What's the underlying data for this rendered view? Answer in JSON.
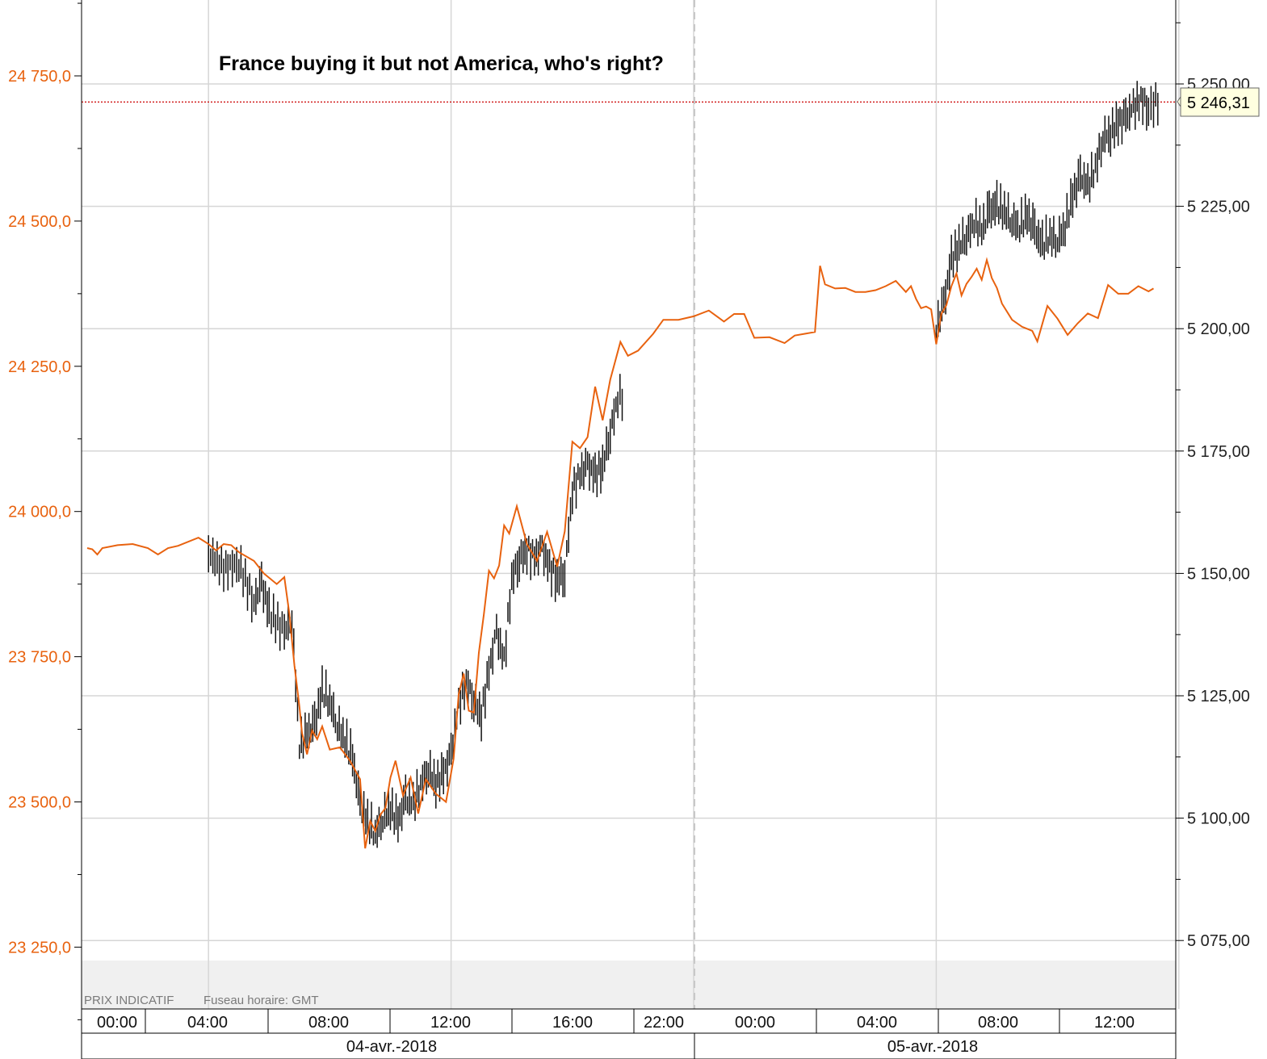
{
  "chart_data": {
    "type": "line",
    "title": "France buying it but not America, who's right?",
    "footnote": {
      "label": "PRIX INDICATIF",
      "timezone": "Fuseau horaire: GMT"
    },
    "x_ticks": [
      "00:00",
      "04:00",
      "08:00",
      "12:00",
      "16:00",
      "22:00",
      "00:00",
      "04:00",
      "08:00",
      "12:00"
    ],
    "x_dates": [
      "04-avr.-2018",
      "05-avr.-2018"
    ],
    "left_axis": {
      "ticks": [
        "24 750,0",
        "24 500,0",
        "24 250,0",
        "24 000,0",
        "23 750,0",
        "23 500,0",
        "23 250,0"
      ],
      "tick_values": [
        24750,
        24500,
        24250,
        24000,
        23750,
        23500,
        23250
      ],
      "color": "#e8620f"
    },
    "right_axis": {
      "ticks": [
        "5 250,00",
        "5 225,00",
        "5 200,00",
        "5 175,00",
        "5 150,00",
        "5 125,00",
        "5 100,00",
        "5 075,00"
      ],
      "tick_values": [
        5250,
        5225,
        5200,
        5175,
        5150,
        5125,
        5100,
        5075
      ],
      "color": "#222222"
    },
    "last_price": {
      "label": "5 246,31",
      "value": 5246.31,
      "line_color": "#cc0000"
    },
    "grid": true,
    "series": [
      {
        "axis": "left",
        "style": "line",
        "color": "#e8620f",
        "points": [
          [
            "04-avr. 00:00",
            23937
          ],
          [
            "04-avr. 00:10",
            23935
          ],
          [
            "04-avr. 00:20",
            23926
          ],
          [
            "04-avr. 00:30",
            23937
          ],
          [
            "04-avr. 01:00",
            23942
          ],
          [
            "04-avr. 01:30",
            23944
          ],
          [
            "04-avr. 02:00",
            23937
          ],
          [
            "04-avr. 02:20",
            23926
          ],
          [
            "04-avr. 02:40",
            23937
          ],
          [
            "04-avr. 03:00",
            23941
          ],
          [
            "04-avr. 03:40",
            23955
          ],
          [
            "04-avr. 04:00",
            23944
          ],
          [
            "04-avr. 04:15",
            23933
          ],
          [
            "04-avr. 04:30",
            23944
          ],
          [
            "04-avr. 04:45",
            23942
          ],
          [
            "04-avr. 05:00",
            23930
          ],
          [
            "04-avr. 05:30",
            23915
          ],
          [
            "04-avr. 05:50",
            23893
          ],
          [
            "04-avr. 06:15",
            23875
          ],
          [
            "04-avr. 06:30",
            23887
          ],
          [
            "04-avr. 06:40",
            23824
          ],
          [
            "04-avr. 06:50",
            23735
          ],
          [
            "04-avr. 07:00",
            23664
          ],
          [
            "04-avr. 07:05",
            23619
          ],
          [
            "04-avr. 07:15",
            23582
          ],
          [
            "04-avr. 07:25",
            23623
          ],
          [
            "04-avr. 07:35",
            23608
          ],
          [
            "04-avr. 07:45",
            23630
          ],
          [
            "04-avr. 08:00",
            23590
          ],
          [
            "04-avr. 08:20",
            23594
          ],
          [
            "04-avr. 08:40",
            23571
          ],
          [
            "04-avr. 09:00",
            23539
          ],
          [
            "04-avr. 09:10",
            23420
          ],
          [
            "04-avr. 09:20",
            23467
          ],
          [
            "04-avr. 09:30",
            23450
          ],
          [
            "04-avr. 09:40",
            23478
          ],
          [
            "04-avr. 09:50",
            23489
          ],
          [
            "04-avr. 10:00",
            23542
          ],
          [
            "04-avr. 10:10",
            23571
          ],
          [
            "04-avr. 10:25",
            23511
          ],
          [
            "04-avr. 10:40",
            23542
          ],
          [
            "04-avr. 10:55",
            23480
          ],
          [
            "04-avr. 11:10",
            23539
          ],
          [
            "04-avr. 11:30",
            23514
          ],
          [
            "04-avr. 11:50",
            23500
          ],
          [
            "04-avr. 12:05",
            23574
          ],
          [
            "04-avr. 12:15",
            23685
          ],
          [
            "04-avr. 12:25",
            23721
          ],
          [
            "04-avr. 12:35",
            23657
          ],
          [
            "04-avr. 12:45",
            23654
          ],
          [
            "04-avr. 12:55",
            23757
          ],
          [
            "04-avr. 13:05",
            23824
          ],
          [
            "04-avr. 13:15",
            23898
          ],
          [
            "04-avr. 13:25",
            23885
          ],
          [
            "04-avr. 13:35",
            23907
          ],
          [
            "04-avr. 13:45",
            23976
          ],
          [
            "04-avr. 13:55",
            23962
          ],
          [
            "04-avr. 14:10",
            24009
          ],
          [
            "04-avr. 14:30",
            23944
          ],
          [
            "04-avr. 14:50",
            23915
          ],
          [
            "04-avr. 15:10",
            23965
          ],
          [
            "04-avr. 15:30",
            23905
          ],
          [
            "04-avr. 15:45",
            23966
          ],
          [
            "04-avr. 16:00",
            24120
          ],
          [
            "04-avr. 16:15",
            24109
          ],
          [
            "04-avr. 16:30",
            24128
          ],
          [
            "04-avr. 16:45",
            24215
          ],
          [
            "04-avr. 17:00",
            24157
          ],
          [
            "04-avr. 17:15",
            24227
          ],
          [
            "04-avr. 17:35",
            24292
          ],
          [
            "04-avr. 17:50",
            24268
          ],
          [
            "04-avr. 18:10",
            24277
          ],
          [
            "04-avr. 18:40",
            24306
          ],
          [
            "04-avr. 19:00",
            24330
          ],
          [
            "04-avr. 19:30",
            24330
          ],
          [
            "04-avr. 20:00",
            24336
          ],
          [
            "04-avr. 20:30",
            24346
          ],
          [
            "04-avr. 21:00",
            24327
          ],
          [
            "04-avr. 21:20",
            24340
          ],
          [
            "04-avr. 21:40",
            24340
          ],
          [
            "04-avr. 22:00",
            24299
          ],
          [
            "04-avr. 22:30",
            24300
          ],
          [
            "04-avr. 23:00",
            24290
          ],
          [
            "04-avr. 23:20",
            24303
          ],
          [
            "04-avr. 23:40",
            24306
          ],
          [
            "05-avr. 00:00",
            24309
          ],
          [
            "05-avr. 00:10",
            24423
          ],
          [
            "05-avr. 00:20",
            24391
          ],
          [
            "05-avr. 00:40",
            24384
          ],
          [
            "05-avr. 01:00",
            24385
          ],
          [
            "05-avr. 01:20",
            24378
          ],
          [
            "05-avr. 01:40",
            24378
          ],
          [
            "05-avr. 02:00",
            24381
          ],
          [
            "05-avr. 02:20",
            24388
          ],
          [
            "05-avr. 02:40",
            24397
          ],
          [
            "05-avr. 03:00",
            24378
          ],
          [
            "05-avr. 03:10",
            24388
          ],
          [
            "05-avr. 03:20",
            24366
          ],
          [
            "05-avr. 03:30",
            24350
          ],
          [
            "05-avr. 03:40",
            24353
          ],
          [
            "05-avr. 03:50",
            24348
          ],
          [
            "05-avr. 04:00",
            24288
          ],
          [
            "05-avr. 04:10",
            24340
          ],
          [
            "05-avr. 04:20",
            24355
          ],
          [
            "05-avr. 04:30",
            24388
          ],
          [
            "05-avr. 04:40",
            24410
          ],
          [
            "05-avr. 04:50",
            24372
          ],
          [
            "05-avr. 05:00",
            24392
          ],
          [
            "05-avr. 05:10",
            24404
          ],
          [
            "05-avr. 05:20",
            24418
          ],
          [
            "05-avr. 05:30",
            24399
          ],
          [
            "05-avr. 05:40",
            24433
          ],
          [
            "05-avr. 05:50",
            24402
          ],
          [
            "05-avr. 06:00",
            24385
          ],
          [
            "05-avr. 06:10",
            24358
          ],
          [
            "05-avr. 06:30",
            24330
          ],
          [
            "05-avr. 06:50",
            24318
          ],
          [
            "05-avr. 07:10",
            24311
          ],
          [
            "05-avr. 07:20",
            24293
          ],
          [
            "05-avr. 07:40",
            24354
          ],
          [
            "05-avr. 08:00",
            24332
          ],
          [
            "05-avr. 08:20",
            24304
          ],
          [
            "05-avr. 08:40",
            24324
          ],
          [
            "05-avr. 09:00",
            24341
          ],
          [
            "05-avr. 09:20",
            24333
          ],
          [
            "05-avr. 09:40",
            24390
          ],
          [
            "05-avr. 10:00",
            24375
          ],
          [
            "05-avr. 10:20",
            24375
          ],
          [
            "05-avr. 10:40",
            24388
          ],
          [
            "05-avr. 11:00",
            24379
          ],
          [
            "05-avr. 11:10",
            24384
          ]
        ]
      },
      {
        "axis": "right",
        "style": "bars",
        "color": "#111111",
        "points": [
          [
            "04-avr. 04:00",
            5154
          ],
          [
            "04-avr. 04:30",
            5151
          ],
          [
            "04-avr. 05:00",
            5152
          ],
          [
            "04-avr. 05:30",
            5144
          ],
          [
            "04-avr. 05:45",
            5148
          ],
          [
            "04-avr. 06:00",
            5142
          ],
          [
            "04-avr. 06:30",
            5138
          ],
          [
            "04-avr. 06:45",
            5141
          ],
          [
            "04-avr. 07:00",
            5115
          ],
          [
            "04-avr. 07:15",
            5117
          ],
          [
            "04-avr. 07:30",
            5119
          ],
          [
            "04-avr. 07:45",
            5126
          ],
          [
            "04-avr. 08:00",
            5124
          ],
          [
            "04-avr. 08:15",
            5119
          ],
          [
            "04-avr. 08:30",
            5116
          ],
          [
            "04-avr. 08:45",
            5112
          ],
          [
            "04-avr. 09:00",
            5103
          ],
          [
            "04-avr. 09:15",
            5099
          ],
          [
            "04-avr. 09:30",
            5097
          ],
          [
            "04-avr. 09:45",
            5100
          ],
          [
            "04-avr. 10:00",
            5102
          ],
          [
            "04-avr. 10:15",
            5099
          ],
          [
            "04-avr. 10:30",
            5104
          ],
          [
            "04-avr. 10:45",
            5103
          ],
          [
            "04-avr. 11:00",
            5107
          ],
          [
            "04-avr. 11:15",
            5110
          ],
          [
            "04-avr. 11:30",
            5107
          ],
          [
            "04-avr. 11:45",
            5109
          ],
          [
            "04-avr. 12:00",
            5113
          ],
          [
            "04-avr. 12:15",
            5123
          ],
          [
            "04-avr. 12:30",
            5128
          ],
          [
            "04-avr. 12:45",
            5124
          ],
          [
            "04-avr. 13:00",
            5121
          ],
          [
            "04-avr. 13:15",
            5130
          ],
          [
            "04-avr. 13:30",
            5138
          ],
          [
            "04-avr. 13:45",
            5132
          ],
          [
            "04-avr. 14:00",
            5149
          ],
          [
            "04-avr. 14:15",
            5153
          ],
          [
            "04-avr. 14:30",
            5155
          ],
          [
            "04-avr. 14:45",
            5153
          ],
          [
            "04-avr. 15:00",
            5155
          ],
          [
            "04-avr. 15:15",
            5151
          ],
          [
            "04-avr. 15:30",
            5149
          ],
          [
            "04-avr. 15:45",
            5150
          ],
          [
            "04-avr. 16:00",
            5167
          ],
          [
            "04-avr. 16:15",
            5170
          ],
          [
            "04-avr. 16:30",
            5172
          ],
          [
            "04-avr. 16:45",
            5170
          ],
          [
            "04-avr. 17:00",
            5172
          ],
          [
            "04-avr. 17:15",
            5179
          ],
          [
            "04-avr. 17:30",
            5186
          ],
          [
            "05-avr. 04:00",
            5200
          ],
          [
            "05-avr. 04:15",
            5205
          ],
          [
            "05-avr. 04:30",
            5214
          ],
          [
            "05-avr. 04:45",
            5217
          ],
          [
            "05-avr. 05:00",
            5219
          ],
          [
            "05-avr. 05:15",
            5222
          ],
          [
            "05-avr. 05:30",
            5220
          ],
          [
            "05-avr. 05:45",
            5224
          ],
          [
            "05-avr. 06:00",
            5225
          ],
          [
            "05-avr. 06:15",
            5224
          ],
          [
            "05-avr. 06:30",
            5222
          ],
          [
            "05-avr. 06:45",
            5221
          ],
          [
            "05-avr. 07:00",
            5223
          ],
          [
            "05-avr. 07:15",
            5220
          ],
          [
            "05-avr. 07:30",
            5217
          ],
          [
            "05-avr. 07:45",
            5219
          ],
          [
            "05-avr. 08:00",
            5218
          ],
          [
            "05-avr. 08:15",
            5221
          ],
          [
            "05-avr. 08:30",
            5227
          ],
          [
            "05-avr. 08:45",
            5231
          ],
          [
            "05-avr. 09:00",
            5229
          ],
          [
            "05-avr. 09:15",
            5233
          ],
          [
            "05-avr. 09:30",
            5239
          ],
          [
            "05-avr. 09:45",
            5240
          ],
          [
            "05-avr. 10:00",
            5242
          ],
          [
            "05-avr. 10:15",
            5243
          ],
          [
            "05-avr. 10:30",
            5245
          ],
          [
            "05-avr. 10:45",
            5247
          ],
          [
            "05-avr. 11:00",
            5245
          ],
          [
            "05-avr. 11:10",
            5246.31
          ]
        ]
      }
    ]
  }
}
